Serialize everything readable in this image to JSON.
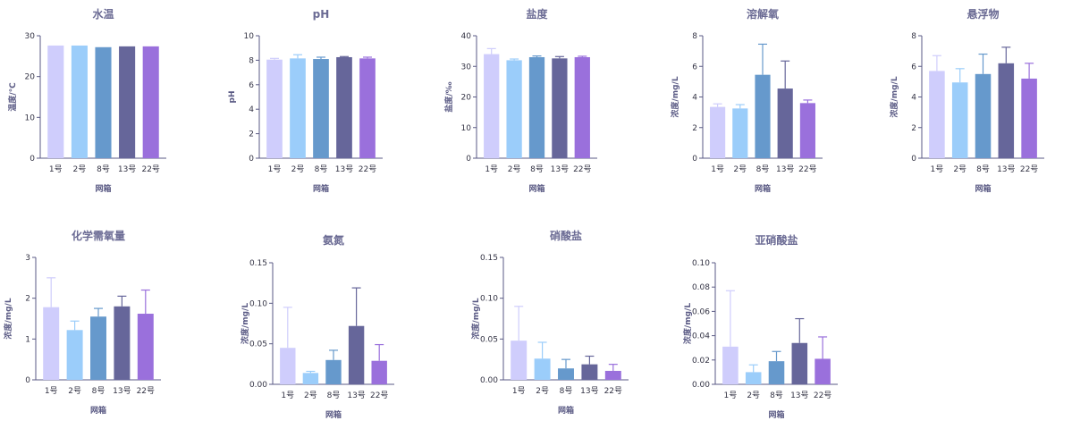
{
  "chart_data": [
    {
      "type": "bar",
      "title": "水温",
      "xlabel": "网箱",
      "ylabel": "温度/℃",
      "categories": [
        "1号",
        "2号",
        "8号",
        "13号",
        "22号"
      ],
      "values": [
        27.6,
        27.6,
        27.2,
        27.4,
        27.4
      ],
      "errors": [
        0,
        0,
        0,
        0,
        0
      ],
      "ylim": [
        0,
        30
      ],
      "yticks": [
        "0",
        "10",
        "20",
        "30"
      ]
    },
    {
      "type": "bar",
      "title": "pH",
      "xlabel": "网箱",
      "ylabel": "pH",
      "categories": [
        "1号",
        "2号",
        "8号",
        "13号",
        "22号"
      ],
      "values": [
        8.05,
        8.15,
        8.1,
        8.25,
        8.15
      ],
      "errors": [
        0.1,
        0.3,
        0.15,
        0.05,
        0.1
      ],
      "ylim": [
        0,
        10
      ],
      "yticks": [
        "0",
        "2",
        "4",
        "6",
        "8",
        "10"
      ]
    },
    {
      "type": "bar",
      "title": "盐度",
      "xlabel": "网箱",
      "ylabel": "盐度/‰",
      "categories": [
        "1号",
        "2号",
        "8号",
        "13号",
        "22号"
      ],
      "values": [
        34,
        32,
        33,
        32.6,
        33
      ],
      "errors": [
        1.8,
        0.4,
        0.4,
        0.6,
        0.3
      ],
      "ylim": [
        0,
        40
      ],
      "yticks": [
        "0",
        "10",
        "20",
        "30",
        "40"
      ]
    },
    {
      "type": "bar",
      "title": "溶解氧",
      "xlabel": "网箱",
      "ylabel": "浓度/mg/L",
      "categories": [
        "1号",
        "2号",
        "8号",
        "13号",
        "22号"
      ],
      "values": [
        3.35,
        3.25,
        5.45,
        4.55,
        3.6
      ],
      "errors": [
        0.2,
        0.25,
        2.0,
        1.8,
        0.2
      ],
      "ylim": [
        0,
        8
      ],
      "yticks": [
        "0",
        "2",
        "4",
        "6",
        "8"
      ]
    },
    {
      "type": "bar",
      "title": "悬浮物",
      "xlabel": "网箱",
      "ylabel": "浓度/mg/L",
      "categories": [
        "1号",
        "2号",
        "8号",
        "13号",
        "22号"
      ],
      "values": [
        5.7,
        4.95,
        5.5,
        6.2,
        5.2
      ],
      "errors": [
        1.0,
        0.9,
        1.3,
        1.05,
        1.0
      ],
      "ylim": [
        0,
        8
      ],
      "yticks": [
        "0",
        "2",
        "4",
        "6",
        "8"
      ]
    },
    {
      "type": "bar",
      "title": "化学需氧量",
      "xlabel": "网箱",
      "ylabel": "浓度/mg/L",
      "categories": [
        "1号",
        "2号",
        "8号",
        "13号",
        "22号"
      ],
      "values": [
        1.78,
        1.22,
        1.55,
        1.8,
        1.62
      ],
      "errors": [
        0.72,
        0.22,
        0.2,
        0.25,
        0.58
      ],
      "ylim": [
        0,
        3
      ],
      "yticks": [
        "0",
        "1",
        "2",
        "3"
      ]
    },
    {
      "type": "bar",
      "title": "氨氮",
      "xlabel": "网箱",
      "ylabel": "浓度/mg/L",
      "categories": [
        "1号",
        "2号",
        "8号",
        "13号",
        "22号"
      ],
      "values": [
        0.045,
        0.014,
        0.03,
        0.072,
        0.029
      ],
      "errors": [
        0.05,
        0.002,
        0.012,
        0.047,
        0.02
      ],
      "ylim": [
        0,
        0.15
      ],
      "yticks": [
        "0.00",
        "0.05",
        "0.10",
        "0.15"
      ]
    },
    {
      "type": "bar",
      "title": "硝酸盐",
      "xlabel": "网箱",
      "ylabel": "浓度/mg/L",
      "categories": [
        "1号",
        "2号",
        "8号",
        "13号",
        "22号"
      ],
      "values": [
        0.048,
        0.026,
        0.014,
        0.019,
        0.011
      ],
      "errors": [
        0.042,
        0.02,
        0.011,
        0.01,
        0.008
      ],
      "ylim": [
        0,
        0.15
      ],
      "yticks": [
        "0.00",
        "0.05",
        "0.10",
        "0.15"
      ]
    },
    {
      "type": "bar",
      "title": "亚硝酸盐",
      "xlabel": "网箱",
      "ylabel": "浓度/mg/L",
      "categories": [
        "1号",
        "2号",
        "8号",
        "13号",
        "22号"
      ],
      "values": [
        0.031,
        0.01,
        0.019,
        0.034,
        0.021
      ],
      "errors": [
        0.046,
        0.006,
        0.008,
        0.02,
        0.018
      ],
      "ylim": [
        0,
        0.1
      ],
      "yticks": [
        "0.00",
        "0.02",
        "0.04",
        "0.06",
        "0.08",
        "0.10"
      ]
    }
  ],
  "colors": [
    "#cfcdfc",
    "#9bcdfa",
    "#6699cc",
    "#66669a",
    "#9a70dc"
  ]
}
